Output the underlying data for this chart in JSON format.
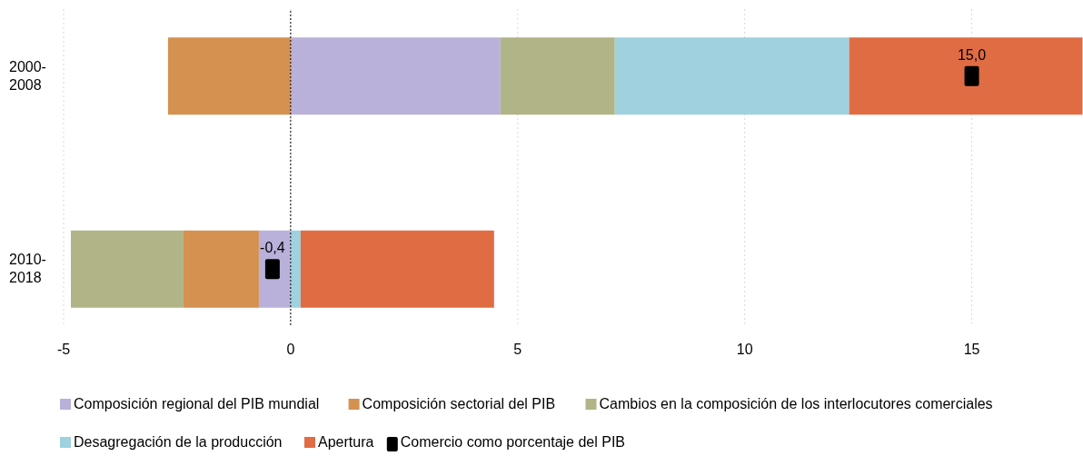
{
  "chart_data": {
    "type": "bar",
    "orientation": "horizontal",
    "stacked": true,
    "categories": [
      "2000-2008",
      "2010-2018"
    ],
    "series": [
      {
        "name": "Composición regional del PIB mundial",
        "color": "#b9b1d9",
        "values": [
          4.62,
          -0.7
        ]
      },
      {
        "name": "Composición sectorial del PIB",
        "color": "#d4914f",
        "values": [
          -2.7,
          -1.66
        ]
      },
      {
        "name": "Cambios en la composición de los interlocutores comerciales",
        "color": "#b0b487",
        "values": [
          2.52,
          -2.48
        ]
      },
      {
        "name": "Desagregación de la producción",
        "color": "#9fd1de",
        "values": [
          5.16,
          0.22
        ]
      },
      {
        "name": "Apertura",
        "color": "#e06c44",
        "values": [
          5.14,
          4.26
        ]
      },
      {
        "name": "Comercio como porcentaje del PIB",
        "type": "scatter",
        "color": "#000000",
        "marker": "square",
        "x": [
          "2000-2008",
          "2010-2018"
        ],
        "values": [
          15.0,
          -0.4
        ],
        "value_labels": [
          "15,0",
          "-0,4"
        ]
      }
    ],
    "xlim": [
      -5,
      17.45
    ],
    "xticks": [
      -5,
      0,
      5,
      10,
      15
    ],
    "grid": "x",
    "legend": "bottom",
    "ref_lines": [
      {
        "axis": "x",
        "value": 0,
        "color": "#000000",
        "line_style": "dotted"
      }
    ]
  }
}
